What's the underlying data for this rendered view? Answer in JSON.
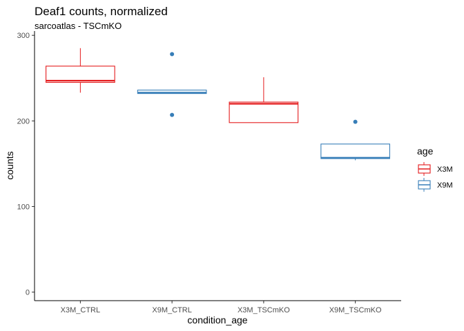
{
  "chart_data": {
    "type": "box",
    "title": "Deaf1 counts, normalized",
    "subtitle": "sarcoatlas - TSCmKO",
    "xlabel": "condition_age",
    "ylabel": "counts",
    "ylim": [
      -10,
      305
    ],
    "yticks": [
      0,
      100,
      200,
      300
    ],
    "categories": [
      "X3M_CTRL",
      "X9M_CTRL",
      "X3M_TSCmKO",
      "X9M_TSCmKO"
    ],
    "grid": false,
    "legend": {
      "title": "age",
      "position": "right",
      "entries": [
        {
          "label": "X3M",
          "color": "#e41a1c"
        },
        {
          "label": "X9M",
          "color": "#377eb8"
        }
      ]
    },
    "boxes": [
      {
        "category": "X3M_CTRL",
        "group": "X3M",
        "min": 233,
        "q1": 245,
        "median": 247,
        "q3": 264,
        "max": 285,
        "outliers": []
      },
      {
        "category": "X9M_CTRL",
        "group": "X9M",
        "min": 232,
        "q1": 232,
        "median": 233,
        "q3": 236,
        "max": 236,
        "outliers": [
          278,
          207
        ]
      },
      {
        "category": "X3M_TSCmKO",
        "group": "X3M",
        "min": 198,
        "q1": 198,
        "median": 220,
        "q3": 222,
        "max": 251,
        "outliers": []
      },
      {
        "category": "X9M_TSCmKO",
        "group": "X9M",
        "min": 154,
        "q1": 156,
        "median": 157,
        "q3": 173,
        "max": 173,
        "outliers": [
          199
        ]
      }
    ]
  }
}
